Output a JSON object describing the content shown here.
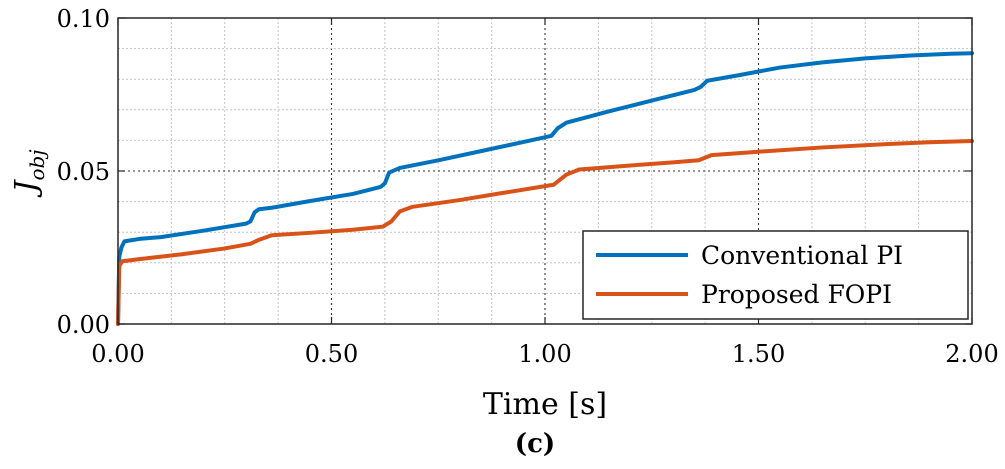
{
  "chart_data": {
    "type": "line",
    "title": "",
    "caption": "(c)",
    "xlabel": "Time [s]",
    "ylabel_main": "J",
    "ylabel_sub": "obj",
    "xlim": [
      0,
      2
    ],
    "ylim": [
      0,
      0.1
    ],
    "x_major_ticks": [
      0,
      0.5,
      1.0,
      1.5,
      2.0
    ],
    "x_tick_labels": [
      "0.00",
      "0.50",
      "1.00",
      "1.50",
      "2.00"
    ],
    "y_major_ticks": [
      0,
      0.05,
      0.1
    ],
    "y_tick_labels": [
      "0.00",
      "0.05",
      "0.10"
    ],
    "grid": "major and minor",
    "legend_position": "bottom-right",
    "series": [
      {
        "name": "Conventional PI",
        "color": "#0072BD",
        "points": [
          [
            0.0,
            0.0
          ],
          [
            0.003,
            0.022
          ],
          [
            0.008,
            0.025
          ],
          [
            0.015,
            0.027
          ],
          [
            0.05,
            0.0278
          ],
          [
            0.1,
            0.0284
          ],
          [
            0.2,
            0.0305
          ],
          [
            0.3,
            0.0328
          ],
          [
            0.31,
            0.0335
          ],
          [
            0.32,
            0.0365
          ],
          [
            0.33,
            0.0375
          ],
          [
            0.36,
            0.038
          ],
          [
            0.45,
            0.0402
          ],
          [
            0.55,
            0.0425
          ],
          [
            0.615,
            0.0448
          ],
          [
            0.625,
            0.046
          ],
          [
            0.635,
            0.0495
          ],
          [
            0.66,
            0.051
          ],
          [
            0.75,
            0.0535
          ],
          [
            0.85,
            0.0565
          ],
          [
            0.95,
            0.0595
          ],
          [
            1.015,
            0.0615
          ],
          [
            1.03,
            0.064
          ],
          [
            1.05,
            0.0658
          ],
          [
            1.15,
            0.0695
          ],
          [
            1.25,
            0.073
          ],
          [
            1.35,
            0.0765
          ],
          [
            1.365,
            0.0775
          ],
          [
            1.38,
            0.0795
          ],
          [
            1.45,
            0.0812
          ],
          [
            1.55,
            0.0838
          ],
          [
            1.65,
            0.0855
          ],
          [
            1.75,
            0.0868
          ],
          [
            1.85,
            0.0877
          ],
          [
            1.95,
            0.0883
          ],
          [
            2.0,
            0.0885
          ]
        ]
      },
      {
        "name": "Proposed FOPI",
        "color": "#D95319",
        "points": [
          [
            0.0,
            0.0
          ],
          [
            0.003,
            0.019
          ],
          [
            0.01,
            0.0205
          ],
          [
            0.05,
            0.0212
          ],
          [
            0.15,
            0.0228
          ],
          [
            0.25,
            0.0247
          ],
          [
            0.31,
            0.0262
          ],
          [
            0.33,
            0.0275
          ],
          [
            0.36,
            0.029
          ],
          [
            0.45,
            0.0298
          ],
          [
            0.55,
            0.0308
          ],
          [
            0.62,
            0.0318
          ],
          [
            0.64,
            0.0335
          ],
          [
            0.66,
            0.0368
          ],
          [
            0.69,
            0.0383
          ],
          [
            0.8,
            0.0405
          ],
          [
            0.9,
            0.0428
          ],
          [
            1.02,
            0.0455
          ],
          [
            1.05,
            0.0488
          ],
          [
            1.08,
            0.0505
          ],
          [
            1.2,
            0.0518
          ],
          [
            1.3,
            0.0528
          ],
          [
            1.36,
            0.0535
          ],
          [
            1.39,
            0.0552
          ],
          [
            1.5,
            0.0563
          ],
          [
            1.65,
            0.0577
          ],
          [
            1.8,
            0.0588
          ],
          [
            1.9,
            0.0594
          ],
          [
            2.0,
            0.0598
          ]
        ]
      }
    ]
  }
}
